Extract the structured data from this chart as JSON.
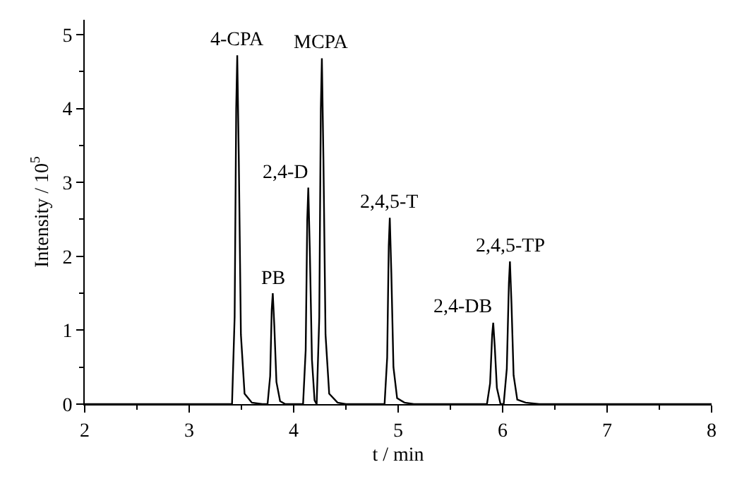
{
  "chart_data": {
    "type": "line",
    "xlabel": "t / min",
    "ylabel": "Intensity / 10$^{5}$",
    "xlim": [
      2,
      8
    ],
    "xticks": [
      2,
      3,
      4,
      5,
      6,
      7,
      8
    ],
    "ylim": [
      0,
      5.2
    ],
    "yticks": [
      0,
      1,
      2,
      3,
      4,
      5
    ],
    "marker": "none",
    "line_style": "solid",
    "series": [
      {
        "color": "#000000",
        "x": [
          2,
          3.41,
          3.435,
          3.45,
          3.46,
          3.475,
          3.495,
          3.53,
          3.6,
          3.7,
          3.75,
          3.775,
          3.79,
          3.8,
          3.815,
          3.835,
          3.87,
          3.92,
          4.09,
          4.115,
          4.13,
          4.14,
          4.155,
          4.175,
          4.2,
          4.22,
          4.245,
          4.26,
          4.27,
          4.285,
          4.305,
          4.34,
          4.42,
          4.5,
          4.87,
          4.895,
          4.91,
          4.92,
          4.935,
          4.955,
          4.99,
          5.06,
          5.15,
          5.85,
          5.88,
          5.9,
          5.91,
          5.925,
          5.945,
          5.98,
          6.01,
          6.04,
          6.06,
          6.07,
          6.085,
          6.105,
          6.14,
          6.22,
          6.35,
          8
        ],
        "values": [
          0,
          0,
          1.18,
          4.0,
          4.72,
          3.3,
          0.94,
          0.14,
          0.02,
          0,
          0,
          0.38,
          1.28,
          1.5,
          1.05,
          0.3,
          0.04,
          0,
          0,
          0.73,
          2.5,
          2.93,
          2.05,
          0.6,
          0.05,
          0,
          1.17,
          4.0,
          4.68,
          3.3,
          0.94,
          0.14,
          0.02,
          0,
          0,
          0.63,
          2.14,
          2.52,
          1.76,
          0.5,
          0.08,
          0.02,
          0,
          0,
          0.28,
          0.94,
          1.1,
          0.77,
          0.22,
          0,
          0,
          0.48,
          1.64,
          1.93,
          1.35,
          0.39,
          0.06,
          0.02,
          0,
          0
        ]
      }
    ],
    "annotations": [
      {
        "text": "4-CPA",
        "x": 3.46,
        "y": 4.72
      },
      {
        "text": "PB",
        "x": 3.8,
        "y": 1.5
      },
      {
        "text": "2,4-D",
        "x": 4.14,
        "y": 2.93
      },
      {
        "text": "MCPA",
        "x": 4.27,
        "y": 4.68
      },
      {
        "text": "2,4,5-T",
        "x": 4.92,
        "y": 2.52
      },
      {
        "text": "2,4-DB",
        "x": 5.91,
        "y": 1.1
      },
      {
        "text": "2,4,5-TP",
        "x": 6.07,
        "y": 1.93
      }
    ]
  }
}
